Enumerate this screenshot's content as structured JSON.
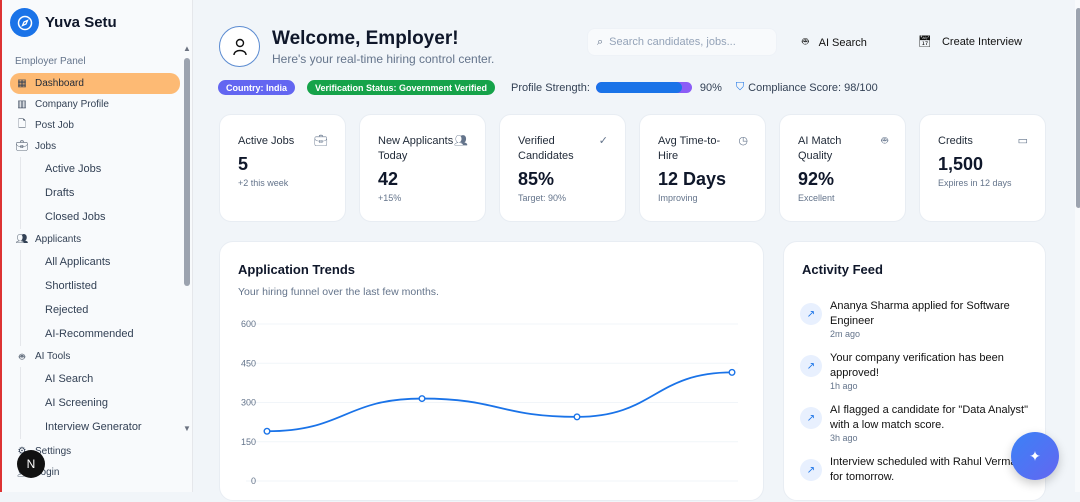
{
  "sidebar": {
    "brand": "Yuva Setu",
    "section": "Employer Panel",
    "items": [
      {
        "label": "Dashboard",
        "icon": "grid-icon",
        "active": true
      },
      {
        "label": "Company Profile",
        "icon": "building-icon"
      },
      {
        "label": "Post Job",
        "icon": "file-plus-icon"
      },
      {
        "label": "Jobs",
        "icon": "briefcase-icon"
      },
      {
        "label": "Active Jobs",
        "sub": true
      },
      {
        "label": "Drafts",
        "sub": true
      },
      {
        "label": "Closed Jobs",
        "sub": true
      },
      {
        "label": "Applicants",
        "icon": "users-icon"
      },
      {
        "label": "All Applicants",
        "sub": true
      },
      {
        "label": "Shortlisted",
        "sub": true
      },
      {
        "label": "Rejected",
        "sub": true
      },
      {
        "label": "AI-Recommended",
        "sub": true
      },
      {
        "label": "AI Tools",
        "icon": "bot-icon"
      },
      {
        "label": "AI Search",
        "sub": true
      },
      {
        "label": "AI Screening",
        "sub": true
      },
      {
        "label": "Interview Generator",
        "sub": true
      },
      {
        "label": "Settings",
        "icon": "gear-icon"
      },
      {
        "label": "Login",
        "icon": "user-icon"
      }
    ],
    "dev_badge": "N"
  },
  "header": {
    "title": "Welcome, Employer!",
    "subtitle": "Here's your real-time hiring control center.",
    "search_placeholder": "Search candidates, jobs...",
    "ai_search": "AI Search",
    "create_interview": "Create Interview"
  },
  "status": {
    "country": "Country: India",
    "verification": "Verification Status: Government Verified",
    "profile_strength_label": "Profile Strength:",
    "profile_strength": 90,
    "profile_strength_text": "90%",
    "compliance": "Compliance Score: 98/100",
    "colors": {
      "country": "#6366f1",
      "verification": "#16a34a",
      "bar": "#1a73e8"
    }
  },
  "cards": [
    {
      "label": "Active Jobs",
      "value": "5",
      "note": "+2 this week",
      "icon": "briefcase-icon"
    },
    {
      "label": "New Applicants Today",
      "value": "42",
      "note": "+15%",
      "icon": "users-icon"
    },
    {
      "label": "Verified Candidates",
      "value": "85%",
      "note": "Target: 90%",
      "icon": "check-circle-icon"
    },
    {
      "label": "Avg Time-to-Hire",
      "value": "12 Days",
      "note": "Improving",
      "icon": "clock-icon"
    },
    {
      "label": "AI Match Quality",
      "value": "92%",
      "note": "Excellent",
      "icon": "bot-icon"
    },
    {
      "label": "Credits",
      "value": "1,500",
      "note": "Expires in 12 days",
      "icon": "credit-card-icon"
    }
  ],
  "trends": {
    "title": "Application Trends",
    "subtitle": "Your hiring funnel over the last few months."
  },
  "chart_data": {
    "type": "line",
    "y_ticks": [
      "600",
      "450",
      "300",
      "150",
      "0"
    ],
    "ylim": [
      0,
      600
    ],
    "values": [
      190,
      315,
      245,
      415
    ],
    "grid": true,
    "color": "#1a73e8"
  },
  "feed": {
    "title": "Activity Feed",
    "items": [
      {
        "text": "Ananya Sharma applied for Software Engineer",
        "time": "2m ago"
      },
      {
        "text": "Your company verification has been approved!",
        "time": "1h ago"
      },
      {
        "text": "AI flagged a candidate for \"Data Analyst\" with a low match score.",
        "time": "3h ago"
      },
      {
        "text": "Interview scheduled with Rahul Verma for tomorrow.",
        "time": ""
      }
    ]
  }
}
